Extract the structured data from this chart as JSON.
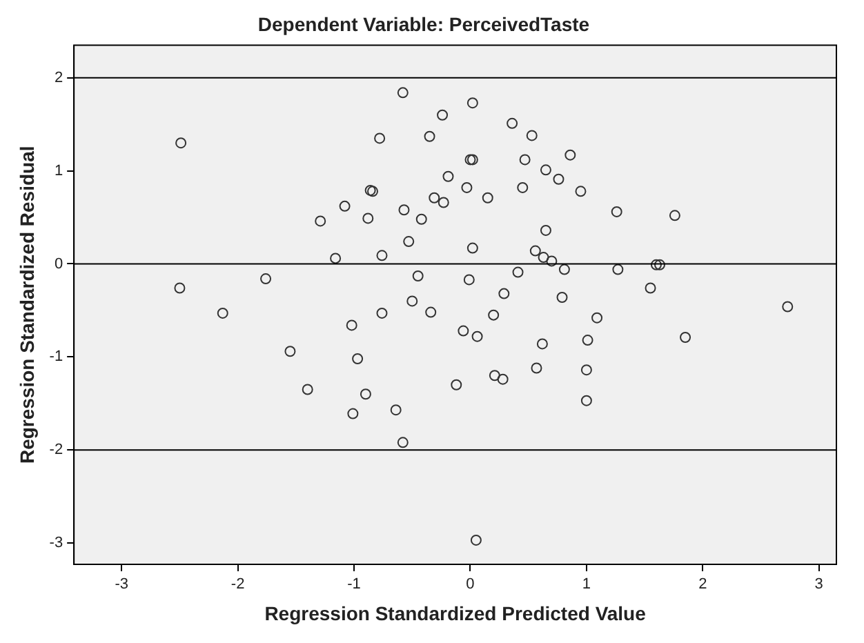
{
  "chart_data": {
    "type": "scatter",
    "title": "Dependent Variable: PerceivedTaste",
    "xlabel": "Regression Standardized Predicted Value",
    "ylabel": "Regression Standardized Residual",
    "x": [
      -2.49,
      -2.5,
      -2.13,
      -1.76,
      -1.55,
      -1.4,
      -1.29,
      -1.16,
      -1.08,
      -1.02,
      -0.97,
      -1.01,
      -0.9,
      -0.88,
      -0.86,
      -0.84,
      -0.78,
      -0.76,
      -0.76,
      -0.64,
      -0.58,
      -0.58,
      -0.57,
      -0.53,
      -0.5,
      -0.45,
      -0.42,
      -0.35,
      -0.34,
      -0.31,
      -0.24,
      -0.23,
      -0.19,
      -0.12,
      -0.06,
      -0.03,
      -0.01,
      0.0,
      0.02,
      0.02,
      0.02,
      0.05,
      0.06,
      0.15,
      0.2,
      0.21,
      0.28,
      0.29,
      0.36,
      0.41,
      0.45,
      0.47,
      0.53,
      0.56,
      0.57,
      0.62,
      0.63,
      0.65,
      0.65,
      0.7,
      0.76,
      0.79,
      0.81,
      0.86,
      0.95,
      1.0,
      1.0,
      1.01,
      1.09,
      1.26,
      1.27,
      1.55,
      1.6,
      1.63,
      1.76,
      1.85,
      2.73
    ],
    "values": [
      1.3,
      -0.26,
      -0.53,
      -0.16,
      -0.94,
      -1.35,
      0.46,
      0.06,
      0.62,
      -0.66,
      -1.02,
      -1.61,
      -1.4,
      0.49,
      0.79,
      0.78,
      1.35,
      0.09,
      -0.53,
      -1.57,
      -1.92,
      1.84,
      0.58,
      0.24,
      -0.4,
      -0.13,
      0.48,
      1.37,
      -0.52,
      0.71,
      1.6,
      0.66,
      0.94,
      -1.3,
      -0.72,
      0.82,
      -0.17,
      1.12,
      1.12,
      1.73,
      0.17,
      -2.97,
      -0.78,
      0.71,
      -0.55,
      -1.2,
      -1.24,
      -0.32,
      1.51,
      -0.09,
      0.82,
      1.12,
      1.38,
      0.14,
      -1.12,
      -0.86,
      0.07,
      0.36,
      1.01,
      0.03,
      0.91,
      -0.36,
      -0.06,
      1.17,
      0.78,
      -1.47,
      -1.14,
      -0.82,
      -0.58,
      0.56,
      -0.06,
      -0.26,
      -0.01,
      -0.01,
      0.52,
      -0.79,
      -0.46
    ],
    "color": "#333333",
    "marker": "circle",
    "grid": false,
    "legend": false,
    "xlim": [
      -3.41,
      3.15
    ],
    "ylim": [
      -3.23,
      2.35
    ],
    "xticks": [
      -3,
      -2,
      -1,
      0,
      1,
      2,
      3
    ],
    "yticks": [
      -3,
      -2,
      -1,
      0,
      1,
      2
    ],
    "ref_lines": [
      {
        "axis": "y",
        "value": 2
      },
      {
        "axis": "y",
        "value": 0
      },
      {
        "axis": "y",
        "value": -2
      }
    ]
  }
}
